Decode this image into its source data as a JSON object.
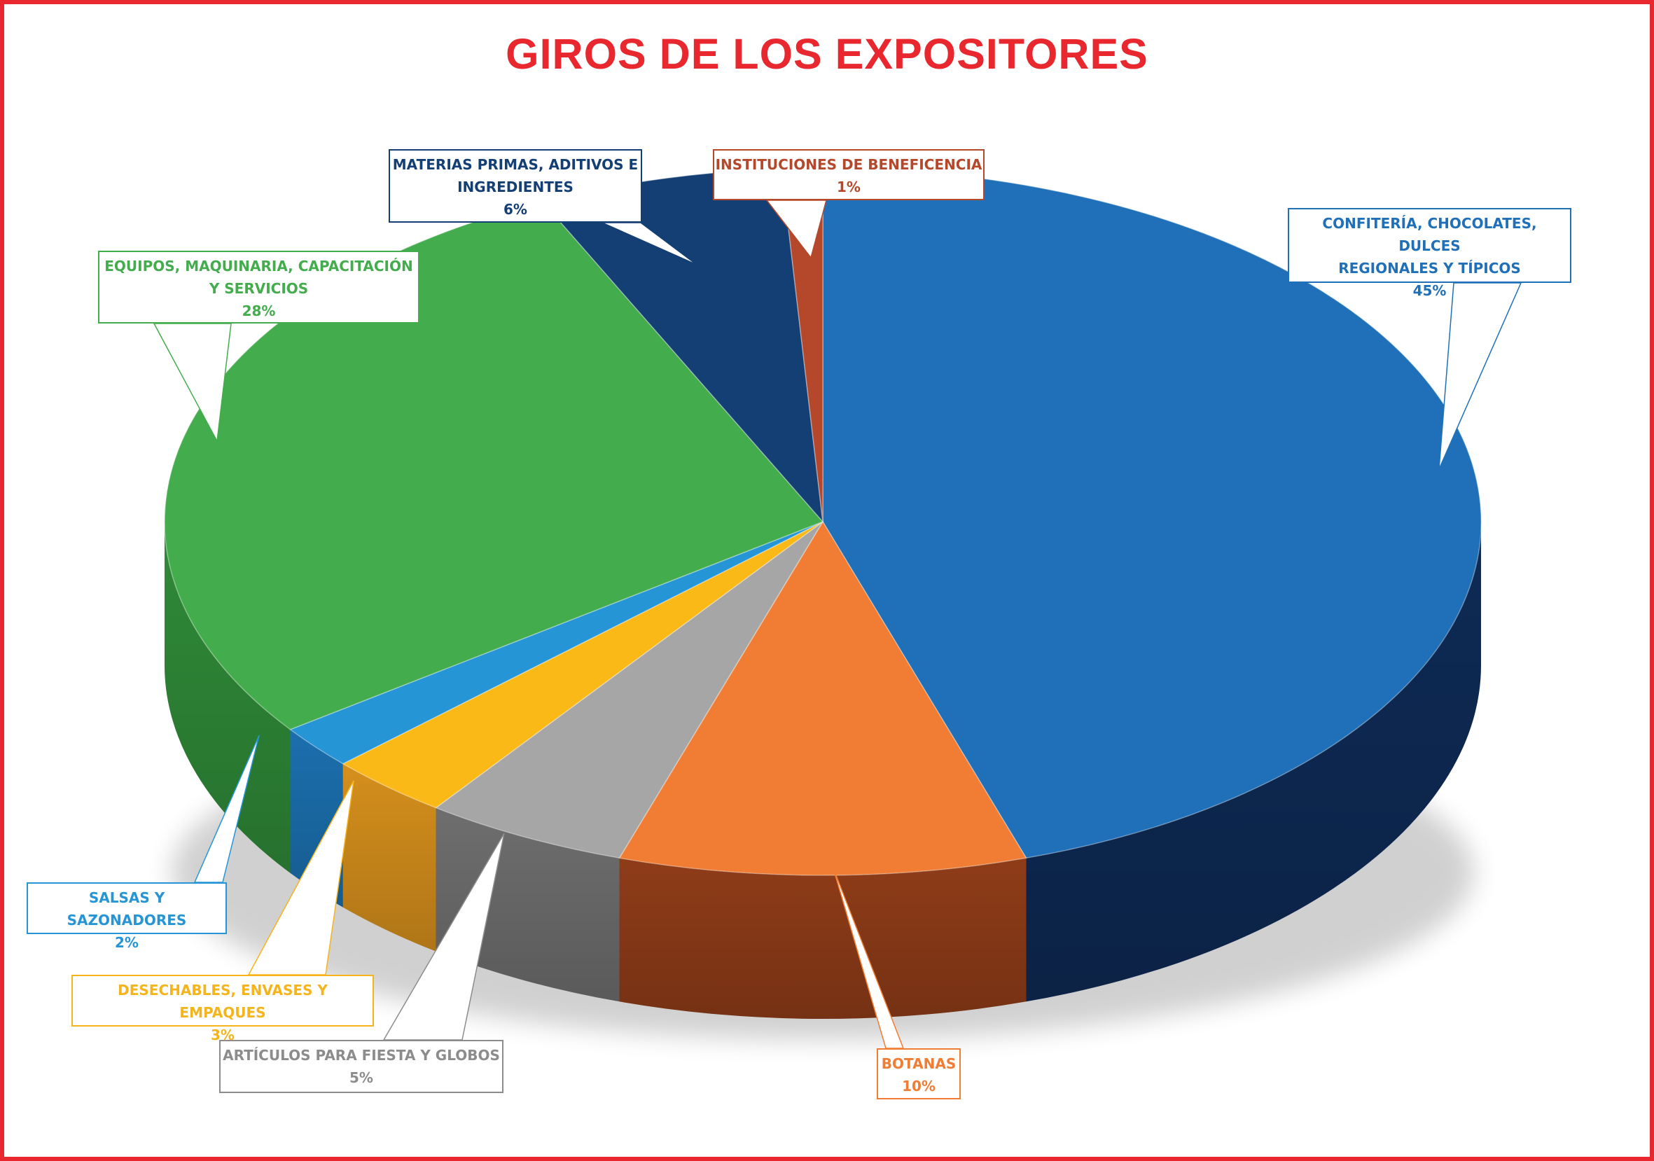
{
  "chart_data": {
    "type": "pie",
    "title": "GIROS DE LOS EXPOSITORES",
    "slices": [
      {
        "label": "CONFITERÍA, CHOCOLATES, DULCES REGIONALES Y TÍPICOS",
        "label_lines": [
          "CONFITERÍA, CHOCOLATES, DULCES",
          "REGIONALES Y TÍPICOS"
        ],
        "value": 45,
        "percent_label": "45%",
        "color": "#1f70b8",
        "side": "#0e2a55"
      },
      {
        "label": "BOTANAS",
        "label_lines": [
          "BOTANAS"
        ],
        "value": 10,
        "percent_label": "10%",
        "color": "#f07d33",
        "side": "#8f3c18"
      },
      {
        "label": "ARTÍCULOS PARA FIESTA Y GLOBOS",
        "label_lines": [
          "ARTÍCULOS PARA FIESTA Y GLOBOS"
        ],
        "value": 5,
        "percent_label": "5%",
        "color": "#a6a6a6",
        "side": "#6e6e6e"
      },
      {
        "label": "DESECHABLES, ENVASES Y EMPAQUES",
        "label_lines": [
          "DESECHABLES, ENVASES Y EMPAQUES"
        ],
        "value": 3,
        "percent_label": "3%",
        "color": "#fbb917",
        "side": "#d58f1c"
      },
      {
        "label": "SALSAS Y SAZONADORES",
        "label_lines": [
          "SALSAS Y SAZONADORES"
        ],
        "value": 2,
        "percent_label": "2%",
        "color": "#2595d6",
        "side": "#1b6fae"
      },
      {
        "label": "EQUIPOS, MAQUINARIA, CAPACITACIÓN Y SERVICIOS",
        "label_lines": [
          "EQUIPOS, MAQUINARIA, CAPACITACIÓN",
          "Y SERVICIOS"
        ],
        "value": 28,
        "percent_label": "28%",
        "color": "#43ac4c",
        "side": "#2f8a38"
      },
      {
        "label": "MATERIAS PRIMAS, ADITIVOS E INGREDIENTES",
        "label_lines": [
          "MATERIAS PRIMAS, ADITIVOS E",
          "INGREDIENTES"
        ],
        "value": 6,
        "percent_label": "6%",
        "color": "#143f75",
        "side": "#0c2850"
      },
      {
        "label": "INSTITUCIONES DE BENEFICENCIA",
        "label_lines": [
          "INSTITUCIONES DE BENEFICENCIA"
        ],
        "value": 1,
        "percent_label": "1%",
        "color": "#b5472a",
        "side": "#7a2c18"
      }
    ],
    "legend": "none"
  },
  "theme": {
    "accent": "#e8282e",
    "text_grey": "#8c8c8c"
  }
}
